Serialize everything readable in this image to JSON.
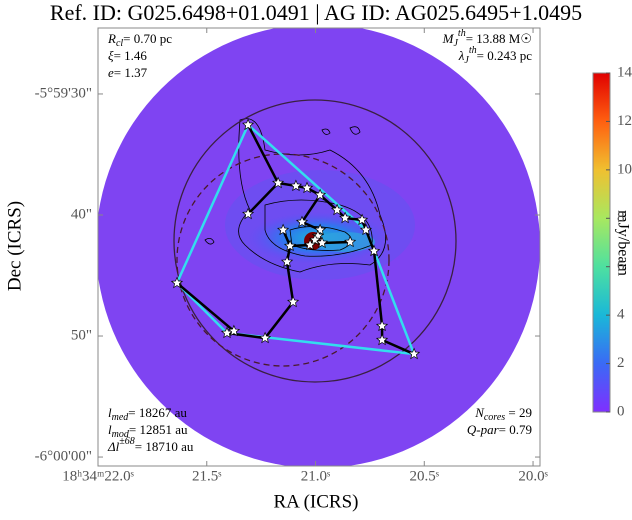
{
  "chart_data": {
    "type": "image",
    "title": "Ref. ID: G025.6498+01.0491 | AG ID: AG025.6495+1.0495",
    "xlabel": "RA (ICRS)",
    "ylabel": "Dec (ICRS)",
    "xlim": [
      22.0,
      19.968
    ],
    "ylim": [
      24.55,
      60.74
    ],
    "xticks": [
      {
        "value": 22.0,
        "label": "18ʰ34ᵐ22.0ˢ"
      },
      {
        "value": 21.5,
        "label": "21.5ˢ"
      },
      {
        "value": 21.0,
        "label": "21.0ˢ"
      },
      {
        "value": 20.5,
        "label": "20.5ˢ"
      },
      {
        "value": 20.0,
        "label": "20.0ˢ"
      }
    ],
    "yticks": [
      {
        "value": 30,
        "label": "-5°59'30\""
      },
      {
        "value": 40,
        "label": "40\""
      },
      {
        "value": 50,
        "label": "50\""
      },
      {
        "value": 60,
        "label": "-6°00'00\""
      }
    ],
    "colorbar": {
      "label": "mJy/beam",
      "lim": [
        0,
        14
      ],
      "ticks": [
        0,
        2,
        4,
        6,
        8,
        10,
        12,
        14
      ],
      "colormap": [
        "#7f2fff",
        "#3a6af5",
        "#1ab8d8",
        "#4ee0a0",
        "#a8e860",
        "#f0c030",
        "#ff6010",
        "#e00000"
      ]
    },
    "cores": {
      "color": "#ffffff",
      "x": [
        21.31,
        21.172,
        21.09,
        21.039,
        20.979,
        21.31,
        21.062,
        20.979,
        20.901,
        20.864,
        20.786,
        20.768,
        20.989,
        21.002,
        20.97,
        21.025,
        21.117,
        21.131,
        20.731,
        21.149,
        21.103,
        21.232,
        21.407,
        21.375,
        21.637,
        20.694,
        20.694,
        20.547,
        20.841
      ],
      "y": [
        32.56,
        37.36,
        37.6,
        37.77,
        38.35,
        39.92,
        40.58,
        41.24,
        39.59,
        40.25,
        40.41,
        41.24,
        41.74,
        42.07,
        42.31,
        42.48,
        42.56,
        43.88,
        42.98,
        41.24,
        47.19,
        50.17,
        49.75,
        49.59,
        45.62,
        49.17,
        50.33,
        51.49,
        42.23
      ]
    },
    "mst": {
      "color": "#000000",
      "edges": [
        [
          0,
          1
        ],
        [
          1,
          2
        ],
        [
          2,
          3
        ],
        [
          3,
          4
        ],
        [
          1,
          5
        ],
        [
          4,
          8
        ],
        [
          8,
          9
        ],
        [
          9,
          10
        ],
        [
          10,
          11
        ],
        [
          11,
          18
        ],
        [
          18,
          25
        ],
        [
          25,
          26
        ],
        [
          26,
          27
        ],
        [
          4,
          6
        ],
        [
          6,
          7
        ],
        [
          7,
          12
        ],
        [
          12,
          13
        ],
        [
          13,
          14
        ],
        [
          13,
          15
        ],
        [
          15,
          16
        ],
        [
          16,
          17
        ],
        [
          17,
          20
        ],
        [
          20,
          21
        ],
        [
          21,
          22
        ],
        [
          22,
          23
        ],
        [
          16,
          19
        ],
        [
          14,
          28
        ],
        [
          23,
          24
        ]
      ]
    },
    "hull": {
      "color": "#33ddee",
      "vertices": [
        0,
        11,
        27,
        22,
        24
      ]
    },
    "annotations": {
      "top_left": [
        {
          "main": "R",
          "sub": "cl",
          "rest": "= 0.70 pc"
        },
        {
          "main": "ξ",
          "rest": "= 1.46"
        },
        {
          "main": "e",
          "rest": "= 1.37"
        }
      ],
      "top_right": [
        {
          "main": "M",
          "sub": "J",
          "sup": "th",
          "rest": "= 13.88 M☉"
        },
        {
          "main": "λ",
          "sub": "J",
          "sup": "th",
          "rest": "= 0.243 pc"
        }
      ],
      "bottom_left": [
        {
          "main": "l",
          "sub": "med",
          "rest": "= 18267 au"
        },
        {
          "main": "l",
          "sub": "mod",
          "rest": "= 12851 au"
        },
        {
          "main": "Δl",
          "sup": "±68",
          "rest": "= 18710 au"
        }
      ],
      "bottom_right": [
        {
          "main": "N",
          "sub": "cores",
          "rest": " = 29"
        },
        {
          "main": "Q-par",
          "rest": "= 0.79"
        }
      ]
    }
  }
}
